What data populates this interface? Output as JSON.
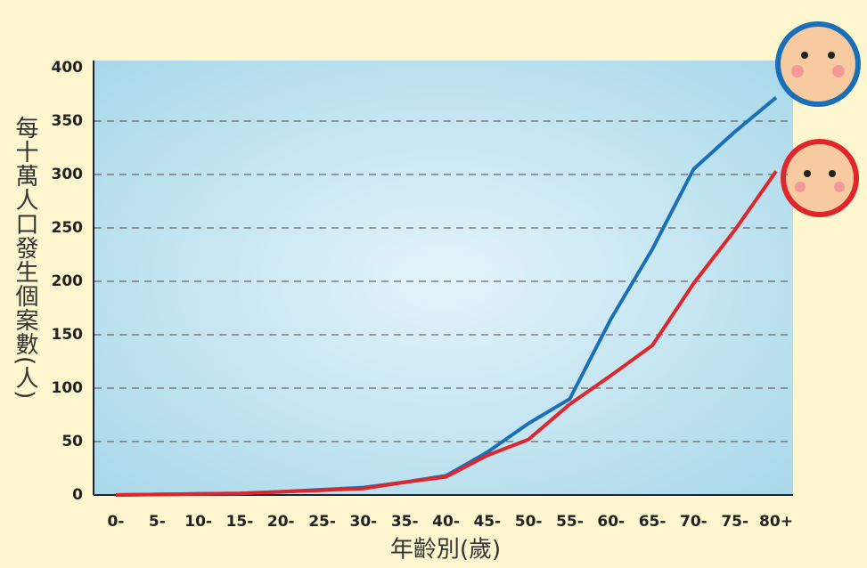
{
  "chart_data": {
    "type": "line",
    "x_label": "年齡別(歲)",
    "y_label": "每十萬人口發生個案數(人)",
    "categories": [
      "0-",
      "5-",
      "10-",
      "15-",
      "20-",
      "25-",
      "30-",
      "35-",
      "40-",
      "45-",
      "50-",
      "55-",
      "60-",
      "65-",
      "70-",
      "75-",
      "80+"
    ],
    "series": [
      {
        "color": "#1a6fb8",
        "values": [
          0,
          0.5,
          1,
          1.5,
          3,
          5,
          7,
          12,
          18,
          40,
          67,
          90,
          165,
          230,
          305,
          340,
          372
        ]
      },
      {
        "color": "#e0262b",
        "values": [
          0,
          0.5,
          1,
          1.5,
          3,
          4.5,
          6,
          12,
          17,
          37,
          52,
          85,
          112,
          140,
          198,
          248,
          303
        ]
      }
    ],
    "ylim": [
      0,
      400
    ],
    "yticks": [
      0,
      50,
      100,
      150,
      200,
      250,
      300,
      350,
      400
    ],
    "grid": true
  }
}
